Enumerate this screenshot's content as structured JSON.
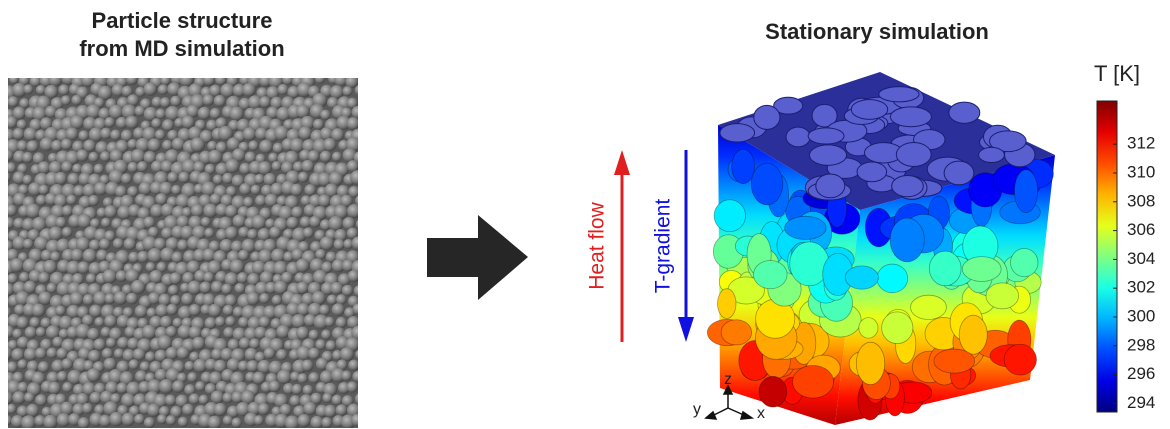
{
  "left_panel": {
    "title_lines": [
      "Particle structure",
      "from MD simulation"
    ]
  },
  "right_panel": {
    "title": "Stationary simulation"
  },
  "direction_arrows": {
    "heat_flow": "Heat flow",
    "t_gradient": "T-gradient"
  },
  "axes_triad": {
    "z": "z",
    "y": "y",
    "x": "x"
  },
  "colorbar": {
    "label": "T [K]",
    "lim": [
      293.4,
      315
    ],
    "ticks": [
      294,
      296,
      298,
      300,
      302,
      304,
      306,
      308,
      310,
      312
    ]
  }
}
